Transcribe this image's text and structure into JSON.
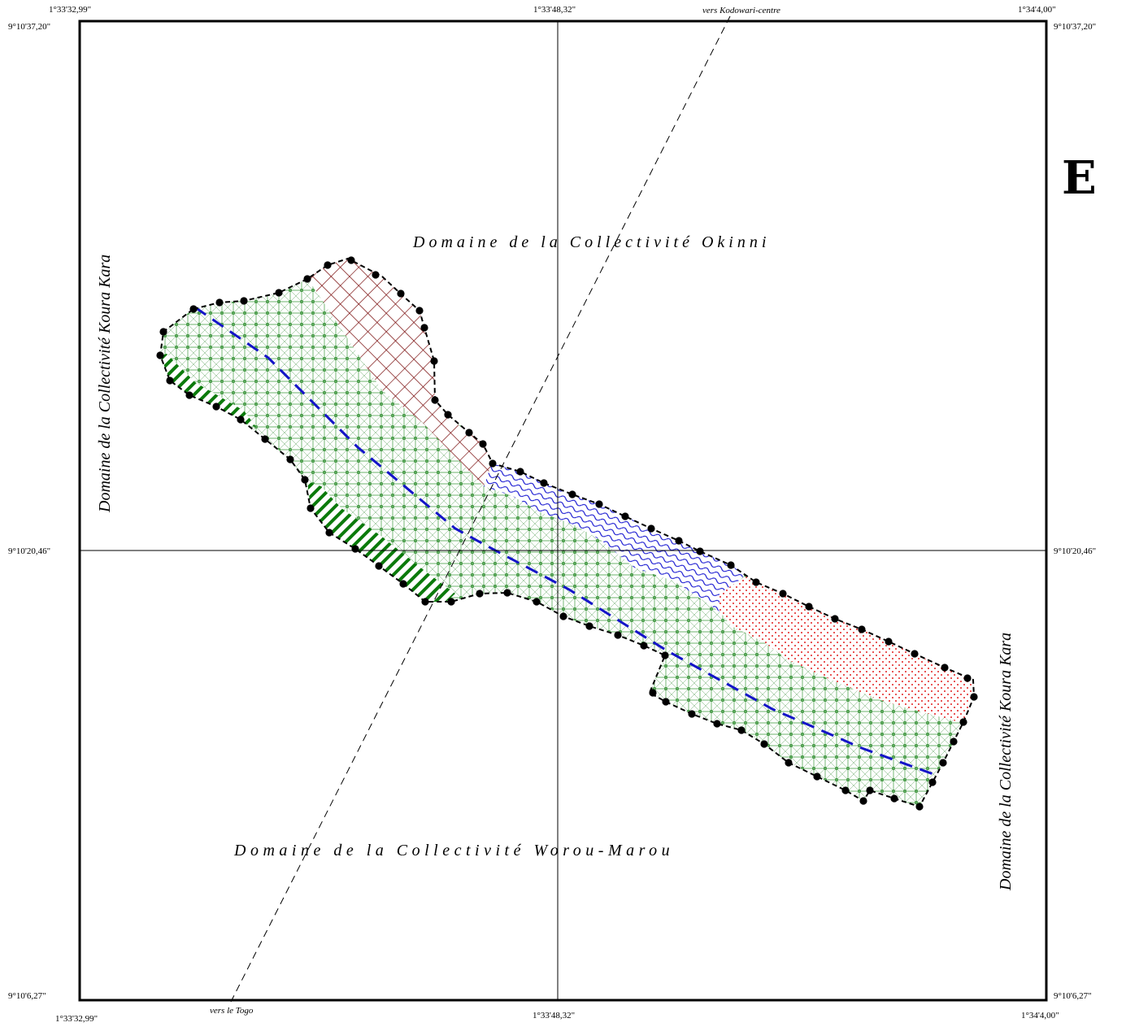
{
  "coordinates": {
    "lon_left_top": "1°33'32,99\"",
    "lon_center_top": "1°33'48,32\"",
    "lon_right_top": "1°34'4,00\"",
    "lon_left_bottom": "1°33'32,99\"",
    "lon_center_bottom": "1°33'48,32\"",
    "lon_right_bottom": "1°34'4,00\"",
    "lat_top_left": "9°10'37,20\"",
    "lat_top_right": "9°10'37,20\"",
    "lat_mid_left": "9°10'20,46\"",
    "lat_mid_right": "9°10'20,46\"",
    "lat_bottom_left": "9°10'6,27\"",
    "lat_bottom_right": "9°10'6,27\""
  },
  "roads": {
    "north": "vers Kodowari-centre",
    "south": "vers le Togo"
  },
  "domains": {
    "north": "Domaine de la Collectivité Okinni",
    "south": "Domaine de la Collectivité Worou-Marou",
    "west": "Domaine de la Collectivité Koura Kara",
    "east": "Domaine de la Collectivité Koura Kara"
  },
  "orientation_letter": "E",
  "colors": {
    "grassland": "#2e8b2e",
    "crosshatch": "#7b1010",
    "water": "#1010d0",
    "dots": "#e01010",
    "stripes": "#0b7a0b",
    "river_line": "#1414c8"
  }
}
